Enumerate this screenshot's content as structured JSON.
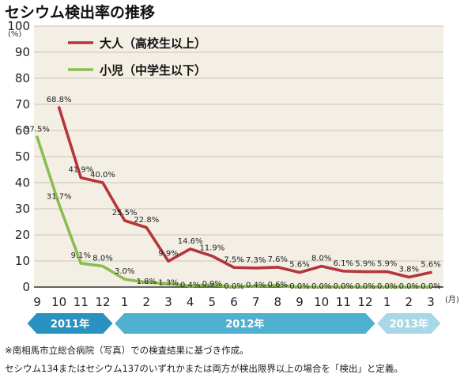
{
  "chart_data": {
    "type": "line",
    "title": "セシウム検出率の推移",
    "ylabel": "(%)",
    "xlabel": "(月)",
    "ylim": [
      0,
      100
    ],
    "yticks": [
      0,
      10,
      20,
      30,
      40,
      50,
      60,
      70,
      80,
      90,
      100
    ],
    "x": [
      "9",
      "10",
      "11",
      "12",
      "1",
      "2",
      "3",
      "4",
      "5",
      "6",
      "7",
      "8",
      "9",
      "10",
      "11",
      "12",
      "1",
      "2",
      "3"
    ],
    "series": [
      {
        "name": "大人（高校生以上）",
        "color": "#b5353a",
        "values": [
          null,
          68.8,
          41.9,
          40.0,
          25.5,
          22.8,
          9.9,
          14.6,
          11.9,
          7.5,
          7.3,
          7.6,
          5.6,
          8.0,
          6.1,
          5.9,
          5.9,
          3.8,
          5.6
        ],
        "labels": [
          "",
          "68.8%",
          "41.9%",
          "40.0%",
          "25.5%",
          "22.8%",
          "9.9%",
          "14.6%",
          "11.9%",
          "7.5%",
          "7.3%",
          "7.6%",
          "5.6%",
          "8.0%",
          "6.1%",
          "5.9%",
          "5.9%",
          "3.8%",
          "5.6%"
        ]
      },
      {
        "name": "小児（中学生以下）",
        "color": "#8cbd50",
        "values": [
          57.5,
          31.7,
          9.1,
          8.0,
          3.0,
          1.8,
          1.3,
          0.4,
          0.9,
          0.0,
          0.4,
          0.6,
          0.0,
          0.0,
          0.0,
          0.0,
          0.0,
          0.0,
          0.0
        ],
        "labels": [
          "57.5%",
          "31.7%",
          "9.1%",
          "8.0%",
          "3.0%",
          "1.8%",
          "1.3%",
          "0.4%",
          "0.9%",
          "0.0%",
          "0.4%",
          "0.6%",
          "0.0%",
          "0.0%",
          "0.0%",
          "0.0%",
          "0.0%",
          "0.0%",
          "0.0%"
        ]
      }
    ],
    "years": [
      {
        "label": "2011年",
        "from_index": 0,
        "to_index": 3
      },
      {
        "label": "2012年",
        "from_index": 4,
        "to_index": 15
      },
      {
        "label": "2013年",
        "from_index": 16,
        "to_index": 18
      }
    ],
    "grid": true,
    "legend": "top-left"
  },
  "footnotes": [
    "※南相馬市立総合病院（写真）での検査結果に基づき作成。",
    "セシウム134またはセシウム137のいずれかまたは両方が検出限界以上の場合を「検出」と定義。"
  ]
}
